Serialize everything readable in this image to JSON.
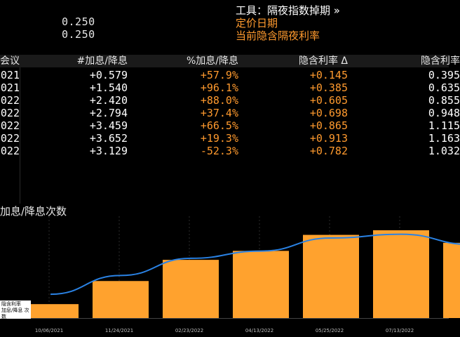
{
  "top_values": [
    "0.250",
    "0.250"
  ],
  "right_header": {
    "tool": "工具：隔夜指数掉期 »",
    "pricing_date": "定价日期",
    "current_rate": "当前隐含隔夜利率"
  },
  "table": {
    "headers": [
      "会议",
      "#加息/降息",
      "%加息/降息",
      "隐含利率 Δ",
      "隐含利率"
    ],
    "rows": [
      [
        "021",
        "+0.579",
        "+57.9%",
        "+0.145",
        "0.395"
      ],
      [
        "021",
        "+1.540",
        "+96.1%",
        "+0.385",
        "0.635"
      ],
      [
        "022",
        "+2.420",
        "+88.0%",
        "+0.605",
        "0.855"
      ],
      [
        "022",
        "+2.794",
        "+37.4%",
        "+0.698",
        "0.948"
      ],
      [
        "022",
        "+3.459",
        "+66.5%",
        "+0.865",
        "1.115"
      ],
      [
        "022",
        "+3.652",
        "+19.3%",
        "+0.913",
        "1.163"
      ],
      [
        "022",
        "+3.129",
        "-52.3%",
        "+0.782",
        "1.032"
      ]
    ]
  },
  "chart_title": "加息/降息次数",
  "legend": {
    "line1": "隐含利率",
    "line2": "加息/降息 次数"
  },
  "chart_data": {
    "type": "bar",
    "title": "加息/降息次数",
    "categories": [
      "10/06/2021",
      "11/24/2021",
      "02/23/2022",
      "04/13/2022",
      "05/25/2022",
      "07/13/2022",
      ""
    ],
    "series": [
      {
        "name": "加息/降息 次数",
        "type": "bar",
        "values": [
          0.579,
          1.54,
          2.42,
          2.794,
          3.459,
          3.652,
          3.129
        ]
      },
      {
        "name": "隐含利率",
        "type": "line",
        "values": [
          0.395,
          0.635,
          0.855,
          0.948,
          1.115,
          1.163,
          1.032
        ]
      }
    ],
    "bar_color": "#ffa22e",
    "line_color": "#2a82e4",
    "ylim_bar": [
      0,
      4
    ],
    "grid": "vertical-dashed"
  }
}
